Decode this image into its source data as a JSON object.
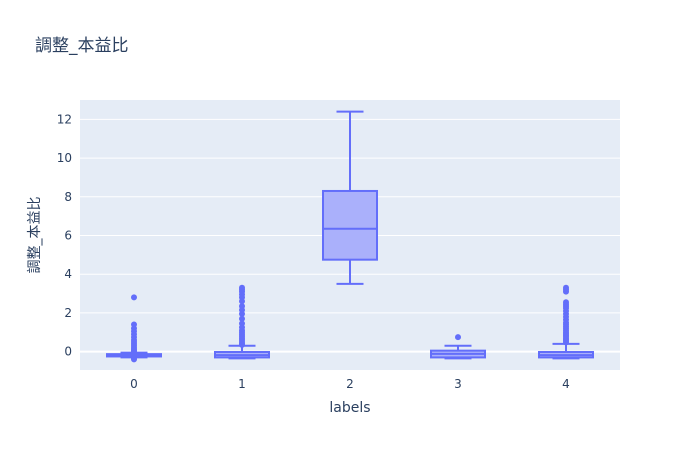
{
  "chart_data": {
    "type": "box",
    "title": "調整_本益比",
    "xlabel": "labels",
    "ylabel": "調整_本益比",
    "ylim": [
      -0.95,
      13.0
    ],
    "yticks": [
      0,
      2,
      4,
      6,
      8,
      10,
      12
    ],
    "grid": true,
    "colors": {
      "plot_bg": "#e5ecf6",
      "box_line": "#636efa",
      "box_fill": "#aab0fb",
      "grid": "#ffffff",
      "text": "#2a3f5f"
    },
    "categories": [
      "0",
      "1",
      "2",
      "3",
      "4"
    ],
    "boxes": [
      {
        "label": "0",
        "min": -0.3,
        "q1": -0.25,
        "median": -0.18,
        "q3": -0.13,
        "max": -0.05,
        "outliers": [
          2.8,
          1.4,
          1.2,
          1.05,
          0.9,
          0.75,
          0.6,
          0.5,
          0.4,
          0.3,
          0.2,
          0.12,
          0.05,
          0.0,
          -0.35,
          -0.4
        ]
      },
      {
        "label": "1",
        "min": -0.35,
        "q1": -0.3,
        "median": -0.18,
        "q3": -0.02,
        "max": 0.3,
        "outliers": [
          3.3,
          3.2,
          3.1,
          2.95,
          2.8,
          2.6,
          2.35,
          2.15,
          1.95,
          1.7,
          1.45,
          1.25,
          1.1,
          1.0,
          0.9,
          0.8,
          0.7,
          0.6,
          0.5,
          0.42,
          0.35
        ]
      },
      {
        "label": "2",
        "min": 3.5,
        "q1": 4.75,
        "median": 6.35,
        "q3": 8.3,
        "max": 12.4,
        "outliers": []
      },
      {
        "label": "3",
        "min": -0.35,
        "q1": -0.3,
        "median": -0.12,
        "q3": 0.05,
        "max": 0.3,
        "outliers": [
          0.75
        ]
      },
      {
        "label": "4",
        "min": -0.35,
        "q1": -0.3,
        "median": -0.18,
        "q3": -0.02,
        "max": 0.4,
        "outliers": [
          3.3,
          3.2,
          3.1,
          2.55,
          2.45,
          2.35,
          2.25,
          2.1,
          1.95,
          1.8,
          1.65,
          1.5,
          1.4,
          1.3,
          1.2,
          1.1,
          1.0,
          0.92,
          0.85,
          0.78,
          0.7,
          0.62,
          0.55,
          0.48
        ]
      }
    ]
  }
}
